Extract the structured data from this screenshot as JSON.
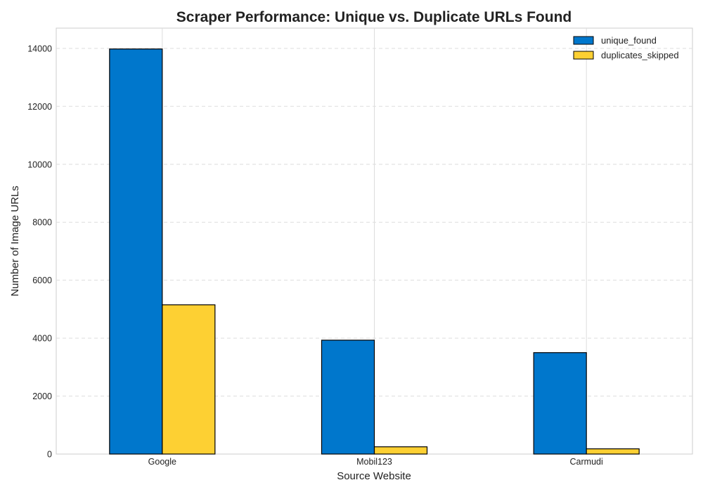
{
  "chart_data": {
    "type": "bar",
    "title": "Scraper Performance: Unique vs. Duplicate URLs Found",
    "xlabel": "Source Website",
    "ylabel": "Number of Image URLs",
    "categories": [
      "Google",
      "Mobil123",
      "Carmudi"
    ],
    "series": [
      {
        "name": "unique_found",
        "values": [
          13980,
          3930,
          3500
        ],
        "color": "#0077cc"
      },
      {
        "name": "duplicates_skipped",
        "values": [
          5150,
          250,
          180
        ],
        "color": "#fdd033"
      }
    ],
    "ylim": [
      0,
      14700
    ],
    "yticks": [
      0,
      2000,
      4000,
      6000,
      8000,
      10000,
      12000,
      14000
    ],
    "grid": true,
    "legend_position": "top-right"
  }
}
